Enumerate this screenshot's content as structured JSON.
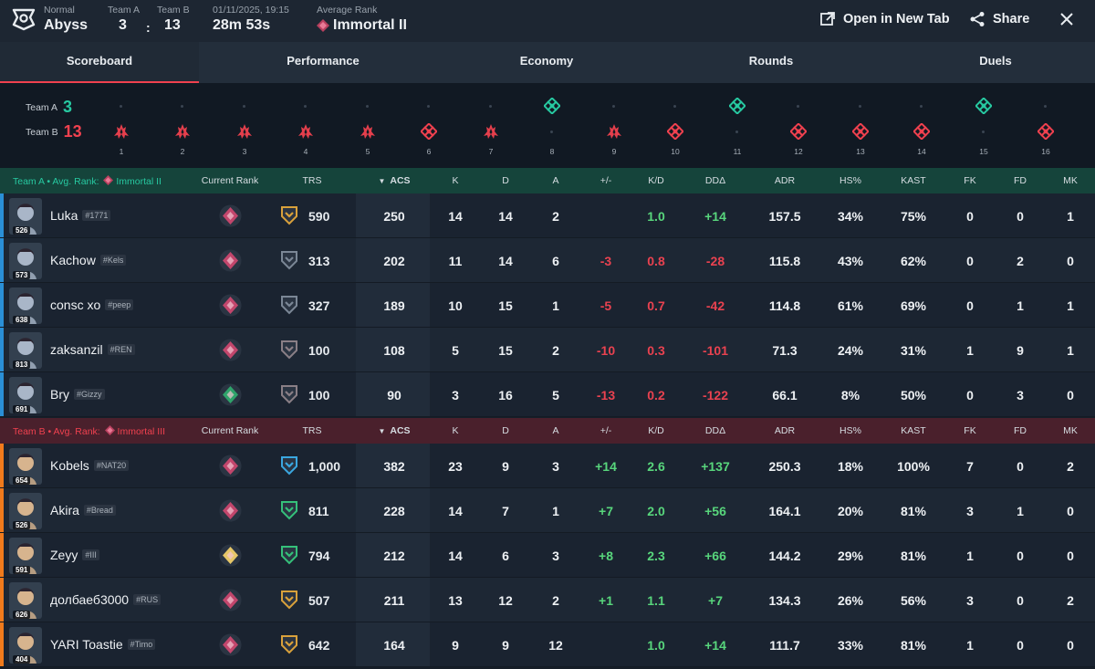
{
  "match": {
    "mode": "Normal",
    "map": "Abyss",
    "teamA_label": "Team A",
    "teamB_label": "Team B",
    "teamA_score": "3",
    "teamB_score": "13",
    "score_sep": ":",
    "date": "01/11/2025, 19:15",
    "duration": "28m 53s",
    "avg_rank_label": "Average Rank",
    "avg_rank": "Immortal II"
  },
  "actions": {
    "open_tab": "Open in New Tab",
    "share": "Share"
  },
  "tabs": [
    "Scoreboard",
    "Performance",
    "Economy",
    "Rounds",
    "Duels"
  ],
  "timeline": {
    "teamA_label": "Team A",
    "teamA_score": "3",
    "teamB_label": "Team B",
    "teamB_score": "13",
    "rounds": [
      {
        "n": "1",
        "winner": "B",
        "type": "elim"
      },
      {
        "n": "2",
        "winner": "B",
        "type": "elim"
      },
      {
        "n": "3",
        "winner": "B",
        "type": "elim"
      },
      {
        "n": "4",
        "winner": "B",
        "type": "elim"
      },
      {
        "n": "5",
        "winner": "B",
        "type": "elim"
      },
      {
        "n": "6",
        "winner": "B",
        "type": "defuse"
      },
      {
        "n": "7",
        "winner": "B",
        "type": "elim"
      },
      {
        "n": "8",
        "winner": "A",
        "type": "defuse"
      },
      {
        "n": "9",
        "winner": "B",
        "type": "elim"
      },
      {
        "n": "10",
        "winner": "B",
        "type": "defuse"
      },
      {
        "n": "11",
        "winner": "A",
        "type": "defuse"
      },
      {
        "n": "12",
        "winner": "B",
        "type": "defuse"
      },
      {
        "n": "13",
        "winner": "B",
        "type": "defuse"
      },
      {
        "n": "14",
        "winner": "B",
        "type": "defuse"
      },
      {
        "n": "15",
        "winner": "A",
        "type": "defuse"
      },
      {
        "n": "16",
        "winner": "B",
        "type": "defuse"
      }
    ]
  },
  "columns": [
    "Current Rank",
    "TRS",
    "ACS",
    "K",
    "D",
    "A",
    "+/-",
    "K/D",
    "DDΔ",
    "ADR",
    "HS%",
    "KAST",
    "FK",
    "FD",
    "MK"
  ],
  "teamA": {
    "avg_label": "Team A • Avg. Rank:",
    "avg_rank": "Immortal II",
    "players": [
      {
        "name": "Luka",
        "tag": "#1771",
        "level": "526",
        "trs": "590",
        "acs": "250",
        "k": "14",
        "d": "14",
        "a": "2",
        "pm": "",
        "kd": "1.0",
        "dd": "+14",
        "adr": "157.5",
        "hs": "34%",
        "kast": "75%",
        "fk": "0",
        "fd": "0",
        "mk": "1",
        "kd_c": "pos",
        "dd_c": "pos",
        "pm_c": "",
        "bar": "#2a8fd6",
        "rank": "#c2466c",
        "trsi": "#d9a13b"
      },
      {
        "name": "Kachow",
        "tag": "#Kels",
        "level": "573",
        "trs": "313",
        "acs": "202",
        "k": "11",
        "d": "14",
        "a": "6",
        "pm": "-3",
        "kd": "0.8",
        "dd": "-28",
        "adr": "115.8",
        "hs": "43%",
        "kast": "62%",
        "fk": "0",
        "fd": "2",
        "mk": "0",
        "kd_c": "neg",
        "dd_c": "neg",
        "pm_c": "neg",
        "bar": "#2a8fd6",
        "rank": "#c2466c",
        "trsi": "#7b8796"
      },
      {
        "name": "consc xo",
        "tag": "#peep",
        "level": "638",
        "trs": "327",
        "acs": "189",
        "k": "10",
        "d": "15",
        "a": "1",
        "pm": "-5",
        "kd": "0.7",
        "dd": "-42",
        "adr": "114.8",
        "hs": "61%",
        "kast": "69%",
        "fk": "0",
        "fd": "1",
        "mk": "1",
        "kd_c": "neg",
        "dd_c": "neg",
        "pm_c": "neg",
        "bar": "#2a8fd6",
        "rank": "#c2466c",
        "trsi": "#7b8796"
      },
      {
        "name": "zaksanzil",
        "tag": "#REN",
        "level": "813",
        "trs": "100",
        "acs": "108",
        "k": "5",
        "d": "15",
        "a": "2",
        "pm": "-10",
        "kd": "0.3",
        "dd": "-101",
        "adr": "71.3",
        "hs": "24%",
        "kast": "31%",
        "fk": "1",
        "fd": "9",
        "mk": "1",
        "kd_c": "neg",
        "dd_c": "neg",
        "pm_c": "neg",
        "bar": "#2a8fd6",
        "rank": "#c2466c",
        "trsi": "#8a7f86"
      },
      {
        "name": "Bry",
        "tag": "#Gizzy",
        "level": "691",
        "trs": "100",
        "acs": "90",
        "k": "3",
        "d": "16",
        "a": "5",
        "pm": "-13",
        "kd": "0.2",
        "dd": "-122",
        "adr": "66.1",
        "hs": "8%",
        "kast": "50%",
        "fk": "0",
        "fd": "3",
        "mk": "0",
        "kd_c": "neg",
        "dd_c": "neg",
        "pm_c": "neg",
        "bar": "#2a8fd6",
        "rank": "#2fa36b",
        "trsi": "#8a7f86"
      }
    ]
  },
  "teamB": {
    "avg_label": "Team B • Avg. Rank:",
    "avg_rank": "Immortal III",
    "players": [
      {
        "name": "Kobels",
        "tag": "#NAT20",
        "level": "654",
        "trs": "1,000",
        "acs": "382",
        "k": "23",
        "d": "9",
        "a": "3",
        "pm": "+14",
        "kd": "2.6",
        "dd": "+137",
        "adr": "250.3",
        "hs": "18%",
        "kast": "100%",
        "fk": "7",
        "fd": "0",
        "mk": "2",
        "kd_c": "pos",
        "dd_c": "pos",
        "pm_c": "pos",
        "bar": "#f07a1c",
        "rank": "#c2466c",
        "trsi": "#3aa7e0"
      },
      {
        "name": "Akira",
        "tag": "#Bread",
        "level": "526",
        "trs": "811",
        "acs": "228",
        "k": "14",
        "d": "7",
        "a": "1",
        "pm": "+7",
        "kd": "2.0",
        "dd": "+56",
        "adr": "164.1",
        "hs": "20%",
        "kast": "81%",
        "fk": "3",
        "fd": "1",
        "mk": "0",
        "kd_c": "pos",
        "dd_c": "pos",
        "pm_c": "pos",
        "bar": "#f07a1c",
        "rank": "#c2466c",
        "trsi": "#35c07a"
      },
      {
        "name": "Zeyy",
        "tag": "#III",
        "level": "591",
        "trs": "794",
        "acs": "212",
        "k": "14",
        "d": "6",
        "a": "3",
        "pm": "+8",
        "kd": "2.3",
        "dd": "+66",
        "adr": "144.2",
        "hs": "29%",
        "kast": "81%",
        "fk": "1",
        "fd": "0",
        "mk": "0",
        "kd_c": "pos",
        "dd_c": "pos",
        "pm_c": "pos",
        "bar": "#f07a1c",
        "rank": "#e6c768",
        "trsi": "#35c07a"
      },
      {
        "name": "долбаеб3000",
        "tag": "#RUS",
        "level": "626",
        "trs": "507",
        "acs": "211",
        "k": "13",
        "d": "12",
        "a": "2",
        "pm": "+1",
        "kd": "1.1",
        "dd": "+7",
        "adr": "134.3",
        "hs": "26%",
        "kast": "56%",
        "fk": "3",
        "fd": "0",
        "mk": "2",
        "kd_c": "pos",
        "dd_c": "pos",
        "pm_c": "pos",
        "bar": "#f07a1c",
        "rank": "#c2466c",
        "trsi": "#d9a13b"
      },
      {
        "name": "YARI Toastie",
        "tag": "#Timo",
        "level": "404",
        "trs": "642",
        "acs": "164",
        "k": "9",
        "d": "9",
        "a": "12",
        "pm": "",
        "kd": "1.0",
        "dd": "+14",
        "adr": "111.7",
        "hs": "33%",
        "kast": "81%",
        "fk": "1",
        "fd": "0",
        "mk": "0",
        "kd_c": "pos",
        "dd_c": "pos",
        "pm_c": "",
        "bar": "#f07a1c",
        "rank": "#c2466c",
        "trsi": "#d9a13b"
      }
    ]
  },
  "colors": {
    "teamA": "#27c9a1",
    "teamB": "#f0414f",
    "accent": "#f0414f"
  }
}
